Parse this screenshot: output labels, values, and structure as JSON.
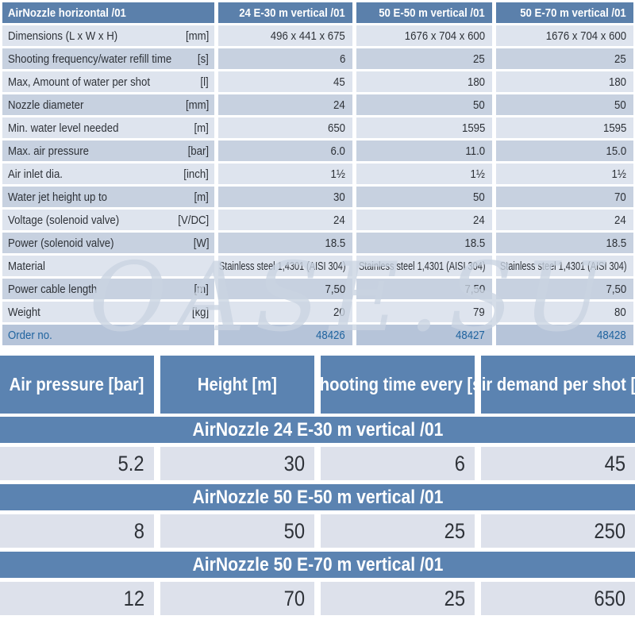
{
  "watermark": "OASE.SU",
  "colors": {
    "header_blue": "#5b80ab",
    "band_blue": "#5b83b1",
    "row_light": "#dee4ee",
    "row_mid": "#c7d1e0",
    "order_row_bg": "#b6c4d9",
    "order_text_blue": "#1f639f",
    "text_dark": "#2e3238"
  },
  "spec_table": {
    "header": {
      "product": "AirNozzle horizontal /01",
      "models": [
        "24 E-30 m vertical /01",
        "50 E-50 m vertical /01",
        "50 E-70 m vertical /01"
      ]
    },
    "rows": [
      {
        "label": "Dimensions (L x W x H)",
        "unit": "[mm]",
        "values": [
          "496 x 441 x 675",
          "1676 x 704 x 600",
          "1676 x 704 x 600"
        ]
      },
      {
        "label": "Shooting frequency/water refill time",
        "unit": "[s]",
        "values": [
          "6",
          "25",
          "25"
        ]
      },
      {
        "label": "Max, Amount of water per shot",
        "unit": "[l]",
        "values": [
          "45",
          "180",
          "180"
        ]
      },
      {
        "label": "Nozzle diameter",
        "unit": "[mm]",
        "values": [
          "24",
          "50",
          "50"
        ]
      },
      {
        "label": "Min. water level needed",
        "unit": "[m]",
        "values": [
          "650",
          "1595",
          "1595"
        ]
      },
      {
        "label": "Max. air pressure",
        "unit": "[bar]",
        "values": [
          "6.0",
          "11.0",
          "15.0"
        ]
      },
      {
        "label": "Air inlet dia.",
        "unit": "[inch]",
        "values": [
          "1½",
          "1½",
          "1½"
        ]
      },
      {
        "label": "Water jet height up to",
        "unit": "[m]",
        "values": [
          "30",
          "50",
          "70"
        ]
      },
      {
        "label": "Voltage (solenoid valve)",
        "unit": "[V/DC]",
        "values": [
          "24",
          "24",
          "24"
        ]
      },
      {
        "label": "Power (solenoid valve)",
        "unit": "[W]",
        "values": [
          "18.5",
          "18.5",
          "18.5"
        ]
      },
      {
        "label": "Material",
        "unit": "",
        "values": [
          "Stainless steel 1,4301 (AISI 304)",
          "Stainless steel 1,4301 (AISI 304)",
          "Stainless steel 1,4301 (AISI 304)"
        ]
      },
      {
        "label": "Power cable length",
        "unit": "[m]",
        "values": [
          "7,50",
          "7,50",
          "7,50"
        ]
      },
      {
        "label": "Weight",
        "unit": "[kg]",
        "values": [
          "20",
          "79",
          "80"
        ]
      },
      {
        "label": "Order no.",
        "unit": "",
        "values": [
          "48426",
          "48427",
          "48428"
        ],
        "kind": "order"
      }
    ]
  },
  "pressure_table": {
    "headers": [
      "Air pressure\n[bar]",
      "Height\n[m]",
      "Shooting time\nevery [s]",
      "Air demand\nper shot [l]"
    ],
    "sections": [
      {
        "title": "AirNozzle 24 E-30 m vertical /01",
        "values": [
          "5.2",
          "30",
          "6",
          "45"
        ]
      },
      {
        "title": "AirNozzle 50 E-50 m vertical /01",
        "values": [
          "8",
          "50",
          "25",
          "250"
        ]
      },
      {
        "title": "AirNozzle 50 E-70 m vertical /01",
        "values": [
          "12",
          "70",
          "25",
          "650"
        ]
      }
    ]
  }
}
